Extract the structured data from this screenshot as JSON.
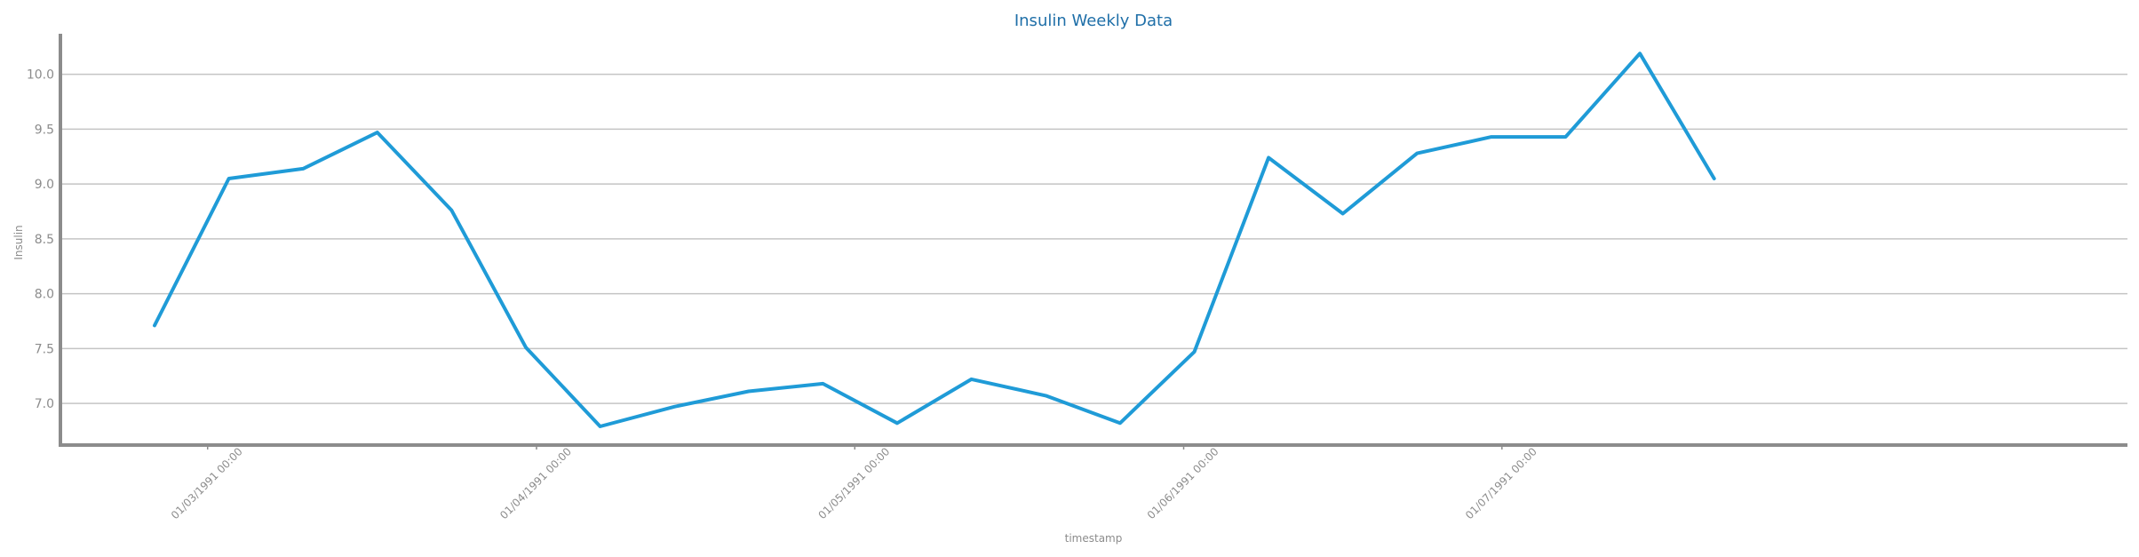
{
  "colors": {
    "title": "#1f6fa8",
    "line": "#1f9bd7",
    "axis": "#8c8c8c",
    "grid": "#c4c4c4",
    "text": "#8c8c8c"
  },
  "chart_data": {
    "type": "line",
    "title": "Insulin Weekly Data",
    "xlabel": "timestamp",
    "ylabel": "Insulin",
    "ylim": [
      6.62,
      10.37
    ],
    "grid": "horizontal",
    "yticks": [
      7.0,
      7.5,
      8.0,
      8.5,
      9.0,
      9.5,
      10.0
    ],
    "ytick_labels": [
      "7.0",
      "7.5",
      "8.0",
      "8.5",
      "9.0",
      "9.5",
      "10.0"
    ],
    "xlim": [
      "1991-02-24",
      "1991-08-20"
    ],
    "xticks": [
      "1991-03-01",
      "1991-04-01",
      "1991-05-01",
      "1991-06-01",
      "1991-07-01"
    ],
    "xtick_labels": [
      "01/03/1991 00:00",
      "01/04/1991 00:00",
      "01/05/1991 00:00",
      "01/06/1991 00:00",
      "01/07/1991 00:00"
    ],
    "series": [
      {
        "x": [
          "1991-02-24",
          "1991-03-03",
          "1991-03-10",
          "1991-03-17",
          "1991-03-24",
          "1991-03-31",
          "1991-04-07",
          "1991-04-14",
          "1991-04-21",
          "1991-04-28",
          "1991-05-05",
          "1991-05-12",
          "1991-05-19",
          "1991-05-26",
          "1991-06-02",
          "1991-06-09",
          "1991-06-16",
          "1991-06-23",
          "1991-06-30",
          "1991-07-07",
          "1991-07-14",
          "1991-07-21"
        ],
        "values": [
          7.71,
          9.05,
          9.14,
          9.47,
          8.76,
          7.51,
          6.79,
          6.97,
          7.11,
          7.18,
          6.82,
          7.22,
          7.07,
          6.82,
          7.47,
          9.24,
          8.73,
          9.28,
          9.43,
          9.43,
          10.19,
          9.05
        ]
      }
    ]
  }
}
